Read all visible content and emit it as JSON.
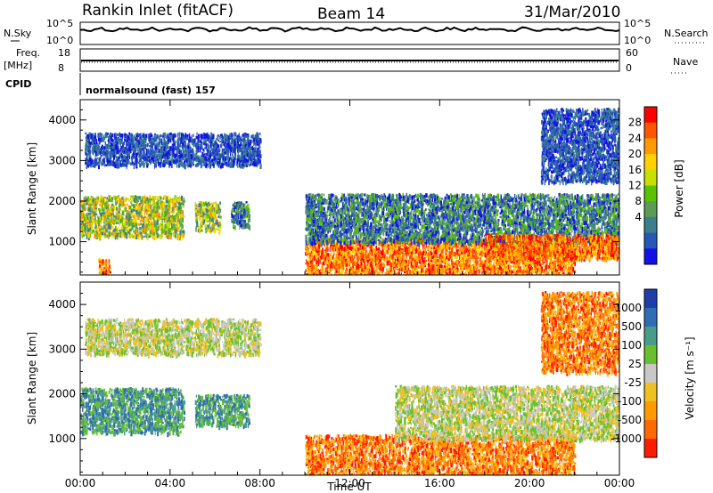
{
  "header": {
    "station": "Rankin Inlet (fitACF)",
    "beam": "Beam 14",
    "date": "31/Mar/2010"
  },
  "status_panels": {
    "nsky_label": "N.Sky",
    "nsky_ticks": [
      "10^5",
      "10^0"
    ],
    "nsearch_label": "N.Search",
    "nsearch_ticks": [
      "10^5",
      "10^0"
    ],
    "freq_label": "Freq.",
    "freq_unit": "[MHz]",
    "freq_ticks": [
      "18",
      "8"
    ],
    "nave_label": "Nave",
    "nave_ticks": [
      "60",
      "0"
    ],
    "cpid_label": "CPID",
    "cpid_text": "normalsound (fast) 157"
  },
  "chart_data": [
    {
      "type": "heatmap",
      "name": "power",
      "ylabel": "Slant Range [km]",
      "xlabel": "Time UT",
      "x_ticks": [
        "00:00",
        "04:00",
        "08:00",
        "12:00",
        "16:00",
        "20:00",
        "00:00"
      ],
      "x_range_hours": [
        0,
        24
      ],
      "y_ticks": [
        1000,
        2000,
        3000,
        4000
      ],
      "ylim": [
        180,
        4500
      ],
      "colorbar": {
        "label": "Power [dB]",
        "ticks": [
          "28",
          "24",
          "20",
          "16",
          "12",
          "8",
          "4"
        ],
        "colors": [
          "#ff0000",
          "#ff5500",
          "#ff9a00",
          "#ffd100",
          "#c8e000",
          "#58c300",
          "#5b9c55",
          "#3b7f8f",
          "#2656b8",
          "#1212e6"
        ]
      },
      "regions": [
        {
          "t": [
            0.0,
            4.6
          ],
          "r": [
            1150,
            2150
          ],
          "level": "medium-high"
        },
        {
          "t": [
            5.1,
            6.2
          ],
          "r": [
            1300,
            2000
          ],
          "level": "medium-high"
        },
        {
          "t": [
            6.7,
            7.5
          ],
          "r": [
            1400,
            2000
          ],
          "level": "medium"
        },
        {
          "t": [
            0.8,
            1.3
          ],
          "r": [
            200,
            600
          ],
          "level": "high"
        },
        {
          "t": [
            0.2,
            8.0
          ],
          "r": [
            2900,
            3700
          ],
          "level": "low"
        },
        {
          "t": [
            10.0,
            22.0
          ],
          "r": [
            200,
            1100
          ],
          "level": "high"
        },
        {
          "t": [
            10.0,
            24.0
          ],
          "r": [
            1000,
            2200
          ],
          "level": "medium"
        },
        {
          "t": [
            18.0,
            24.0
          ],
          "r": [
            600,
            1200
          ],
          "level": "high"
        },
        {
          "t": [
            20.5,
            24.0
          ],
          "r": [
            2500,
            4300
          ],
          "level": "low"
        }
      ]
    },
    {
      "type": "heatmap",
      "name": "velocity",
      "ylabel": "Slant Range [km]",
      "xlabel": "Time UT",
      "x_ticks": [
        "00:00",
        "04:00",
        "08:00",
        "12:00",
        "16:00",
        "20:00",
        "00:00"
      ],
      "x_range_hours": [
        0,
        24
      ],
      "y_ticks": [
        1000,
        2000,
        3000,
        4000
      ],
      "ylim": [
        180,
        4500
      ],
      "colorbar": {
        "label": "Velocity [m s⁻¹]",
        "ticks": [
          "1000",
          "500",
          "100",
          "25",
          "-25",
          "-100",
          "-500",
          "-1000"
        ],
        "colors": [
          "#1f3fa8",
          "#2f6db5",
          "#4a9c8a",
          "#67c12e",
          "#c8c8c8",
          "#f0c020",
          "#ff9a00",
          "#ff6a00",
          "#ff1a00"
        ]
      },
      "regions": [
        {
          "t": [
            0.0,
            4.6
          ],
          "r": [
            1150,
            2150
          ],
          "level": "slow-toward"
        },
        {
          "t": [
            5.1,
            7.5
          ],
          "r": [
            1300,
            2000
          ],
          "level": "slow-toward"
        },
        {
          "t": [
            0.2,
            8.0
          ],
          "r": [
            2900,
            3700
          ],
          "level": "near-zero"
        },
        {
          "t": [
            10.0,
            22.0
          ],
          "r": [
            200,
            1100
          ],
          "level": "away"
        },
        {
          "t": [
            14.0,
            24.0
          ],
          "r": [
            1000,
            2200
          ],
          "level": "near-zero"
        },
        {
          "t": [
            20.5,
            24.0
          ],
          "r": [
            2500,
            4300
          ],
          "level": "away"
        }
      ]
    }
  ]
}
